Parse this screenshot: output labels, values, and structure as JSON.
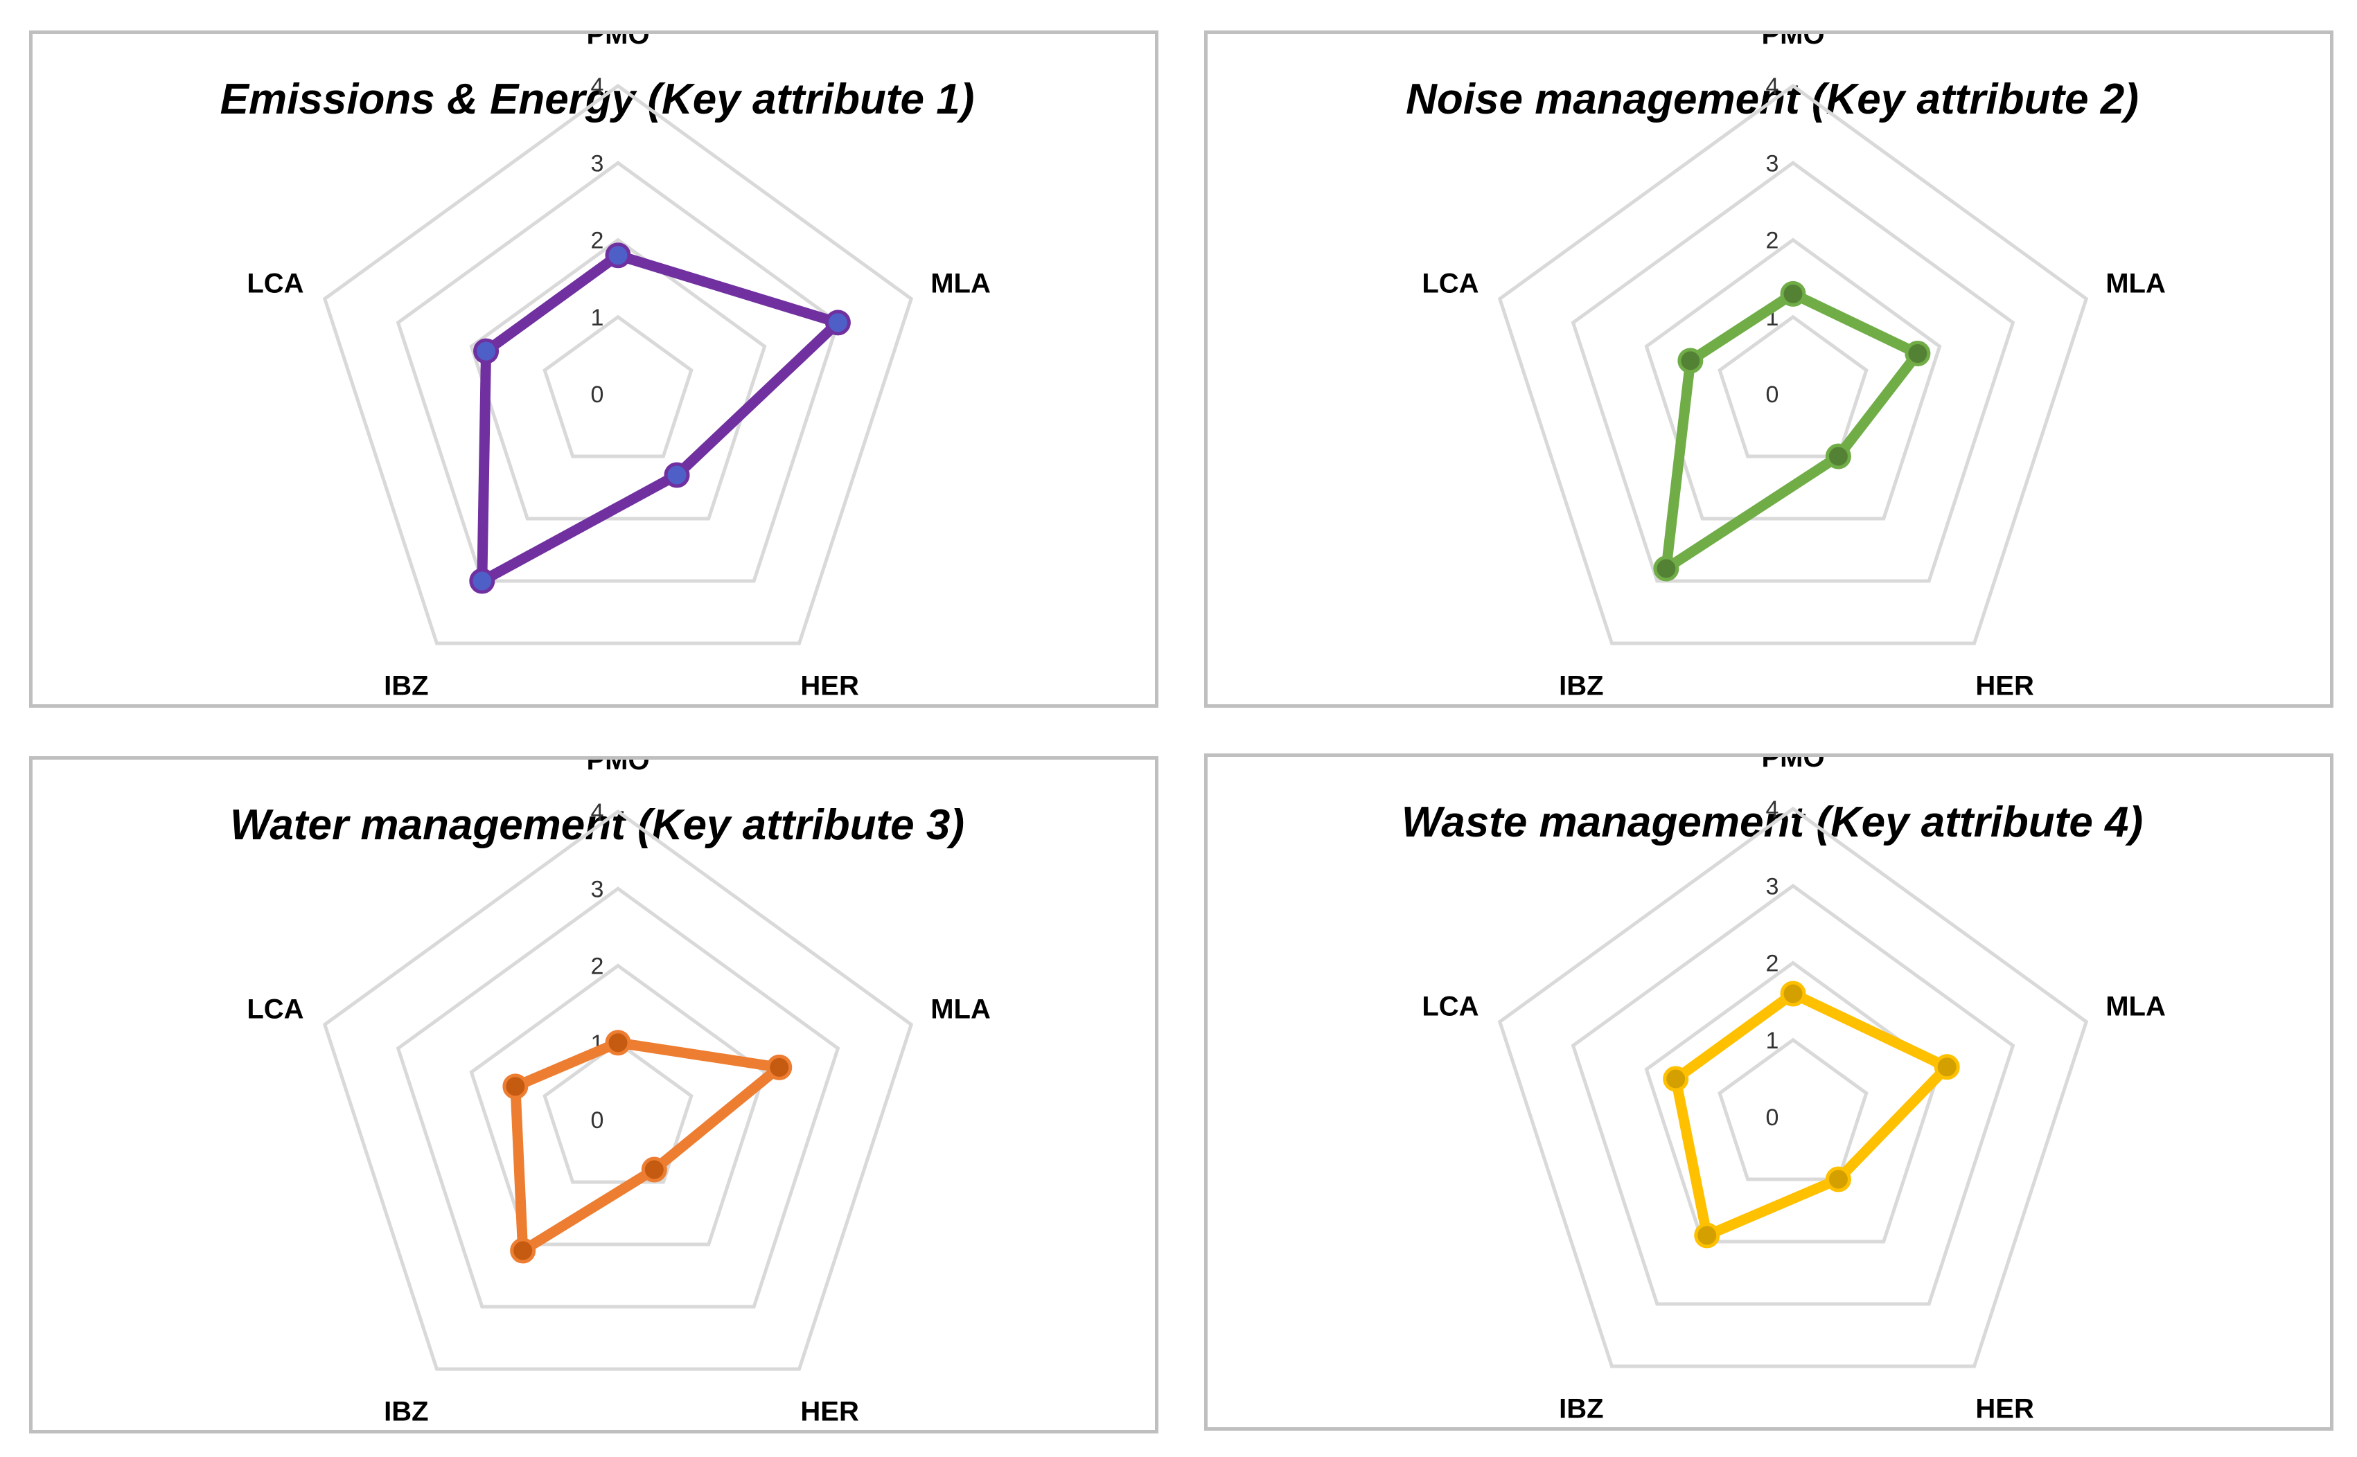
{
  "chart_data": [
    {
      "type": "radar",
      "title": "Emissions & Energy (Key attribute 1)",
      "categories": [
        "PMO",
        "MLA",
        "HER",
        "IBZ",
        "LCA"
      ],
      "values": [
        1.8,
        3.0,
        1.3,
        3.0,
        1.8
      ],
      "rlim": [
        0,
        4
      ],
      "ticks": [
        "0",
        "1",
        "2",
        "3",
        "4"
      ],
      "grid": true,
      "color": "#7030a0",
      "marker_color": "#4f5fc8"
    },
    {
      "type": "radar",
      "title": "Noise management (Key attribute 2)",
      "categories": [
        "PMO",
        "MLA",
        "HER",
        "IBZ",
        "LCA"
      ],
      "values": [
        1.3,
        1.7,
        1.0,
        2.8,
        1.4
      ],
      "rlim": [
        0,
        4
      ],
      "ticks": [
        "0",
        "1",
        "2",
        "3",
        "4"
      ],
      "grid": true,
      "color": "#70ad47",
      "marker_color": "#548235"
    },
    {
      "type": "radar",
      "title": "Water management (Key attribute 3)",
      "categories": [
        "PMO",
        "MLA",
        "HER",
        "IBZ",
        "LCA"
      ],
      "values": [
        1.0,
        2.2,
        0.8,
        2.1,
        1.4
      ],
      "rlim": [
        0,
        4
      ],
      "ticks": [
        "0",
        "1",
        "2",
        "3",
        "4"
      ],
      "grid": true,
      "color": "#ed7d31",
      "marker_color": "#c55a11"
    },
    {
      "type": "radar",
      "title": "Waste management (Key attribute 4)",
      "categories": [
        "PMO",
        "MLA",
        "HER",
        "IBZ",
        "LCA"
      ],
      "values": [
        1.6,
        2.1,
        1.0,
        1.9,
        1.6
      ],
      "rlim": [
        0,
        4
      ],
      "ticks": [
        "0",
        "1",
        "2",
        "3",
        "4"
      ],
      "grid": true,
      "color": "#ffc000",
      "marker_color": "#d4a000"
    }
  ]
}
